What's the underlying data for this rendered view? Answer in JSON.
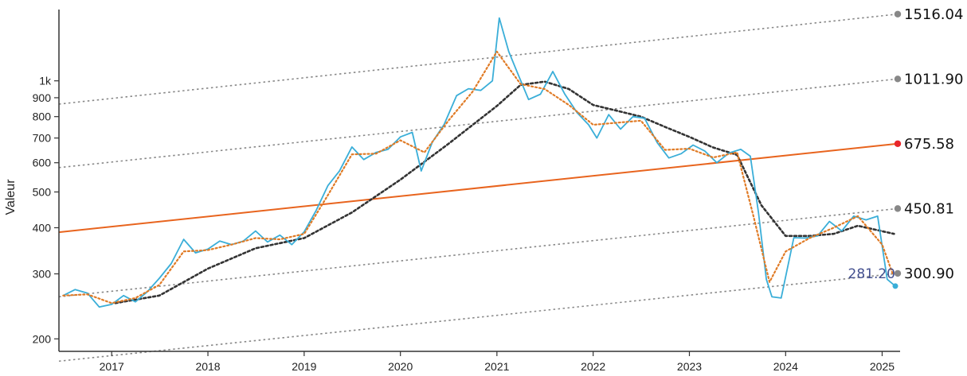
{
  "chart_data": {
    "type": "line",
    "title": "",
    "xlabel": "",
    "ylabel": "Valeur",
    "y_scale": "log",
    "ylim": [
      185,
      1560
    ],
    "xlim": [
      "2016-06-15",
      "2025-03-01"
    ],
    "grid": false,
    "x_ticks": [
      "2017",
      "2018",
      "2019",
      "2020",
      "2021",
      "2022",
      "2023",
      "2024",
      "2025"
    ],
    "y_ticks": [
      {
        "value": 200,
        "label": "200"
      },
      {
        "value": 300,
        "label": "300"
      },
      {
        "value": 400,
        "label": "400"
      },
      {
        "value": 500,
        "label": "500"
      },
      {
        "value": 600,
        "label": "600"
      },
      {
        "value": 700,
        "label": "700"
      },
      {
        "value": 800,
        "label": "800"
      },
      {
        "value": 900,
        "label": "900"
      },
      {
        "value": 1000,
        "label": "1k"
      }
    ],
    "colors": {
      "price": "#3aaed8",
      "ma_short": "#e07b26",
      "ma_long": "#333333",
      "trend": "#e8641e",
      "channel": "#888888",
      "channel_marker": "#888888",
      "trend_marker": "#e8262a",
      "price_marker": "#3aaed8",
      "axis": "#333333"
    },
    "channel_lines": [
      {
        "start": 865,
        "end": 1516.04,
        "label": "1516.04",
        "style": "dotted"
      },
      {
        "start": 582,
        "end": 1011.9,
        "label": "1011.90",
        "style": "dotted"
      },
      {
        "start": 389,
        "end": 675.58,
        "label": "675.58",
        "style": "solid"
      },
      {
        "start": 260,
        "end": 450.81,
        "label": "450.81",
        "style": "dotted"
      },
      {
        "start": 174,
        "end": 300.9,
        "label": "300.90",
        "style": "dotted"
      }
    ],
    "last_price_label": "281.20",
    "series": [
      {
        "key": "price",
        "x": [
          "2016-07-01",
          "2016-08-15",
          "2016-10-01",
          "2016-11-15",
          "2017-01-01",
          "2017-02-15",
          "2017-04-01",
          "2017-05-15",
          "2017-07-01",
          "2017-08-15",
          "2017-10-01",
          "2017-11-15",
          "2018-01-01",
          "2018-02-15",
          "2018-04-01",
          "2018-05-15",
          "2018-07-01",
          "2018-08-15",
          "2018-10-01",
          "2018-11-15",
          "2019-01-01",
          "2019-02-15",
          "2019-04-01",
          "2019-05-15",
          "2019-07-01",
          "2019-08-15",
          "2019-10-01",
          "2019-11-15",
          "2020-01-01",
          "2020-02-15",
          "2020-03-20",
          "2020-05-01",
          "2020-06-15",
          "2020-08-01",
          "2020-09-15",
          "2020-11-01",
          "2020-12-15",
          "2021-01-10",
          "2021-02-15",
          "2021-03-20",
          "2021-05-01",
          "2021-06-15",
          "2021-08-01",
          "2021-09-15",
          "2021-11-01",
          "2021-12-15",
          "2022-01-15",
          "2022-03-01",
          "2022-04-15",
          "2022-06-01",
          "2022-07-15",
          "2022-09-01",
          "2022-10-15",
          "2022-12-01",
          "2023-01-15",
          "2023-03-01",
          "2023-04-15",
          "2023-06-01",
          "2023-07-15",
          "2023-08-20",
          "2023-09-20",
          "2023-10-20",
          "2023-11-10",
          "2023-12-15",
          "2024-02-01",
          "2024-03-15",
          "2024-05-01",
          "2024-06-15",
          "2024-08-01",
          "2024-09-15",
          "2024-11-01",
          "2024-12-15",
          "2025-01-20",
          "2025-02-20"
        ],
        "values": [
          262,
          272,
          266,
          244,
          248,
          262,
          252,
          268,
          292,
          320,
          372,
          342,
          350,
          368,
          360,
          368,
          392,
          366,
          382,
          360,
          390,
          445,
          520,
          570,
          662,
          612,
          640,
          652,
          705,
          725,
          570,
          682,
          762,
          912,
          952,
          942,
          1000,
          1480,
          1200,
          1050,
          890,
          920,
          1060,
          922,
          820,
          760,
          700,
          810,
          740,
          800,
          792,
          680,
          618,
          635,
          670,
          645,
          600,
          638,
          652,
          625,
          440,
          290,
          260,
          258,
          376,
          375,
          380,
          416,
          392,
          430,
          420,
          430,
          290,
          278
        ]
      },
      {
        "key": "ma_short",
        "x": [
          "2016-07-01",
          "2016-10-01",
          "2017-01-01",
          "2017-04-01",
          "2017-07-01",
          "2017-10-01",
          "2018-01-01",
          "2018-04-01",
          "2018-07-01",
          "2018-10-01",
          "2019-01-01",
          "2019-04-01",
          "2019-07-01",
          "2019-10-01",
          "2020-01-01",
          "2020-04-01",
          "2020-07-01",
          "2020-10-01",
          "2021-01-01",
          "2021-04-01",
          "2021-07-01",
          "2021-10-01",
          "2022-01-01",
          "2022-04-01",
          "2022-07-01",
          "2022-10-01",
          "2023-01-01",
          "2023-04-01",
          "2023-07-01",
          "2023-09-01",
          "2023-11-01",
          "2024-01-01",
          "2024-04-01",
          "2024-07-01",
          "2024-10-01",
          "2025-01-01",
          "2025-02-10"
        ],
        "values": [
          262,
          264,
          250,
          258,
          280,
          345,
          348,
          360,
          375,
          372,
          385,
          490,
          632,
          635,
          690,
          640,
          780,
          935,
          1200,
          980,
          950,
          860,
          760,
          770,
          780,
          650,
          655,
          620,
          640,
          430,
          285,
          345,
          375,
          400,
          430,
          360,
          300
        ]
      },
      {
        "key": "ma_long",
        "x": [
          "2017-01-15",
          "2017-07-01",
          "2018-01-01",
          "2018-07-01",
          "2019-01-01",
          "2019-07-01",
          "2020-01-01",
          "2020-07-01",
          "2021-01-01",
          "2021-04-01",
          "2021-07-01",
          "2021-10-01",
          "2022-01-01",
          "2022-04-01",
          "2022-07-01",
          "2022-10-01",
          "2023-01-01",
          "2023-04-01",
          "2023-07-01",
          "2023-10-01",
          "2024-01-01",
          "2024-04-01",
          "2024-07-01",
          "2024-10-01",
          "2025-02-15"
        ],
        "values": [
          250,
          262,
          310,
          352,
          375,
          440,
          540,
          675,
          855,
          975,
          995,
          950,
          860,
          830,
          800,
          750,
          705,
          660,
          630,
          460,
          380,
          380,
          385,
          405,
          385
        ]
      }
    ]
  }
}
